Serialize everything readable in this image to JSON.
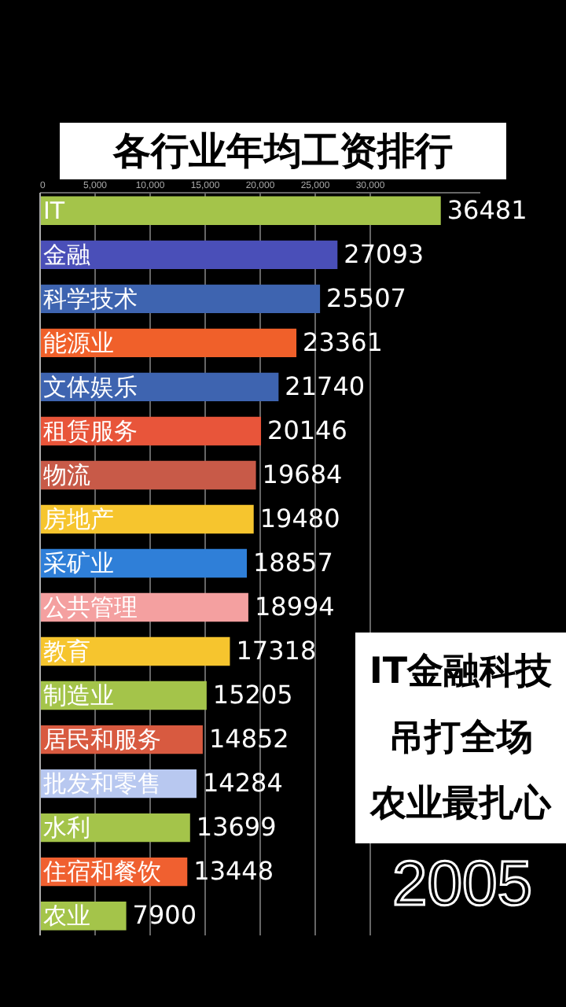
{
  "chart_data": {
    "type": "bar",
    "orientation": "horizontal",
    "title": "各行业年均工资排行",
    "categories": [
      "IT",
      "金融",
      "科学技术",
      "能源业",
      "文体娱乐",
      "租赁服务",
      "物流",
      "房地产",
      "采矿业",
      "公共管理",
      "教育",
      "制造业",
      "居民和服务",
      "批发和零售",
      "水利",
      "住宿和餐饮",
      "农业"
    ],
    "values": [
      36481,
      27093,
      25507,
      23361,
      21740,
      20146,
      19684,
      19480,
      18857,
      18994,
      17318,
      15205,
      14852,
      14284,
      13699,
      13448,
      7900
    ],
    "colors": [
      "#a4c44a",
      "#4a4fb8",
      "#3e64b0",
      "#f0602a",
      "#3e64b0",
      "#e8553a",
      "#c85a48",
      "#f6c52e",
      "#2f7fd8",
      "#f4a0a0",
      "#f6c52e",
      "#a4c44a",
      "#d85a40",
      "#b8c8f0",
      "#a4c44a",
      "#f06030",
      "#a4c44a"
    ],
    "xlim": [
      0,
      40000
    ],
    "xticks": [
      0,
      {
        "value": 5000,
        "label": "5,000"
      },
      {
        "value": 10000,
        "label": "10,000"
      },
      {
        "value": 15000,
        "label": "15,000"
      },
      {
        "value": 20000,
        "label": "20,000"
      },
      {
        "value": 25000,
        "label": "25,000"
      },
      {
        "value": 30000,
        "label": "30,000"
      }
    ],
    "grid": "x",
    "data_labels": true,
    "annotations": [
      "IT金融科技",
      "吊打全场",
      "农业最扎心",
      "2005"
    ]
  }
}
